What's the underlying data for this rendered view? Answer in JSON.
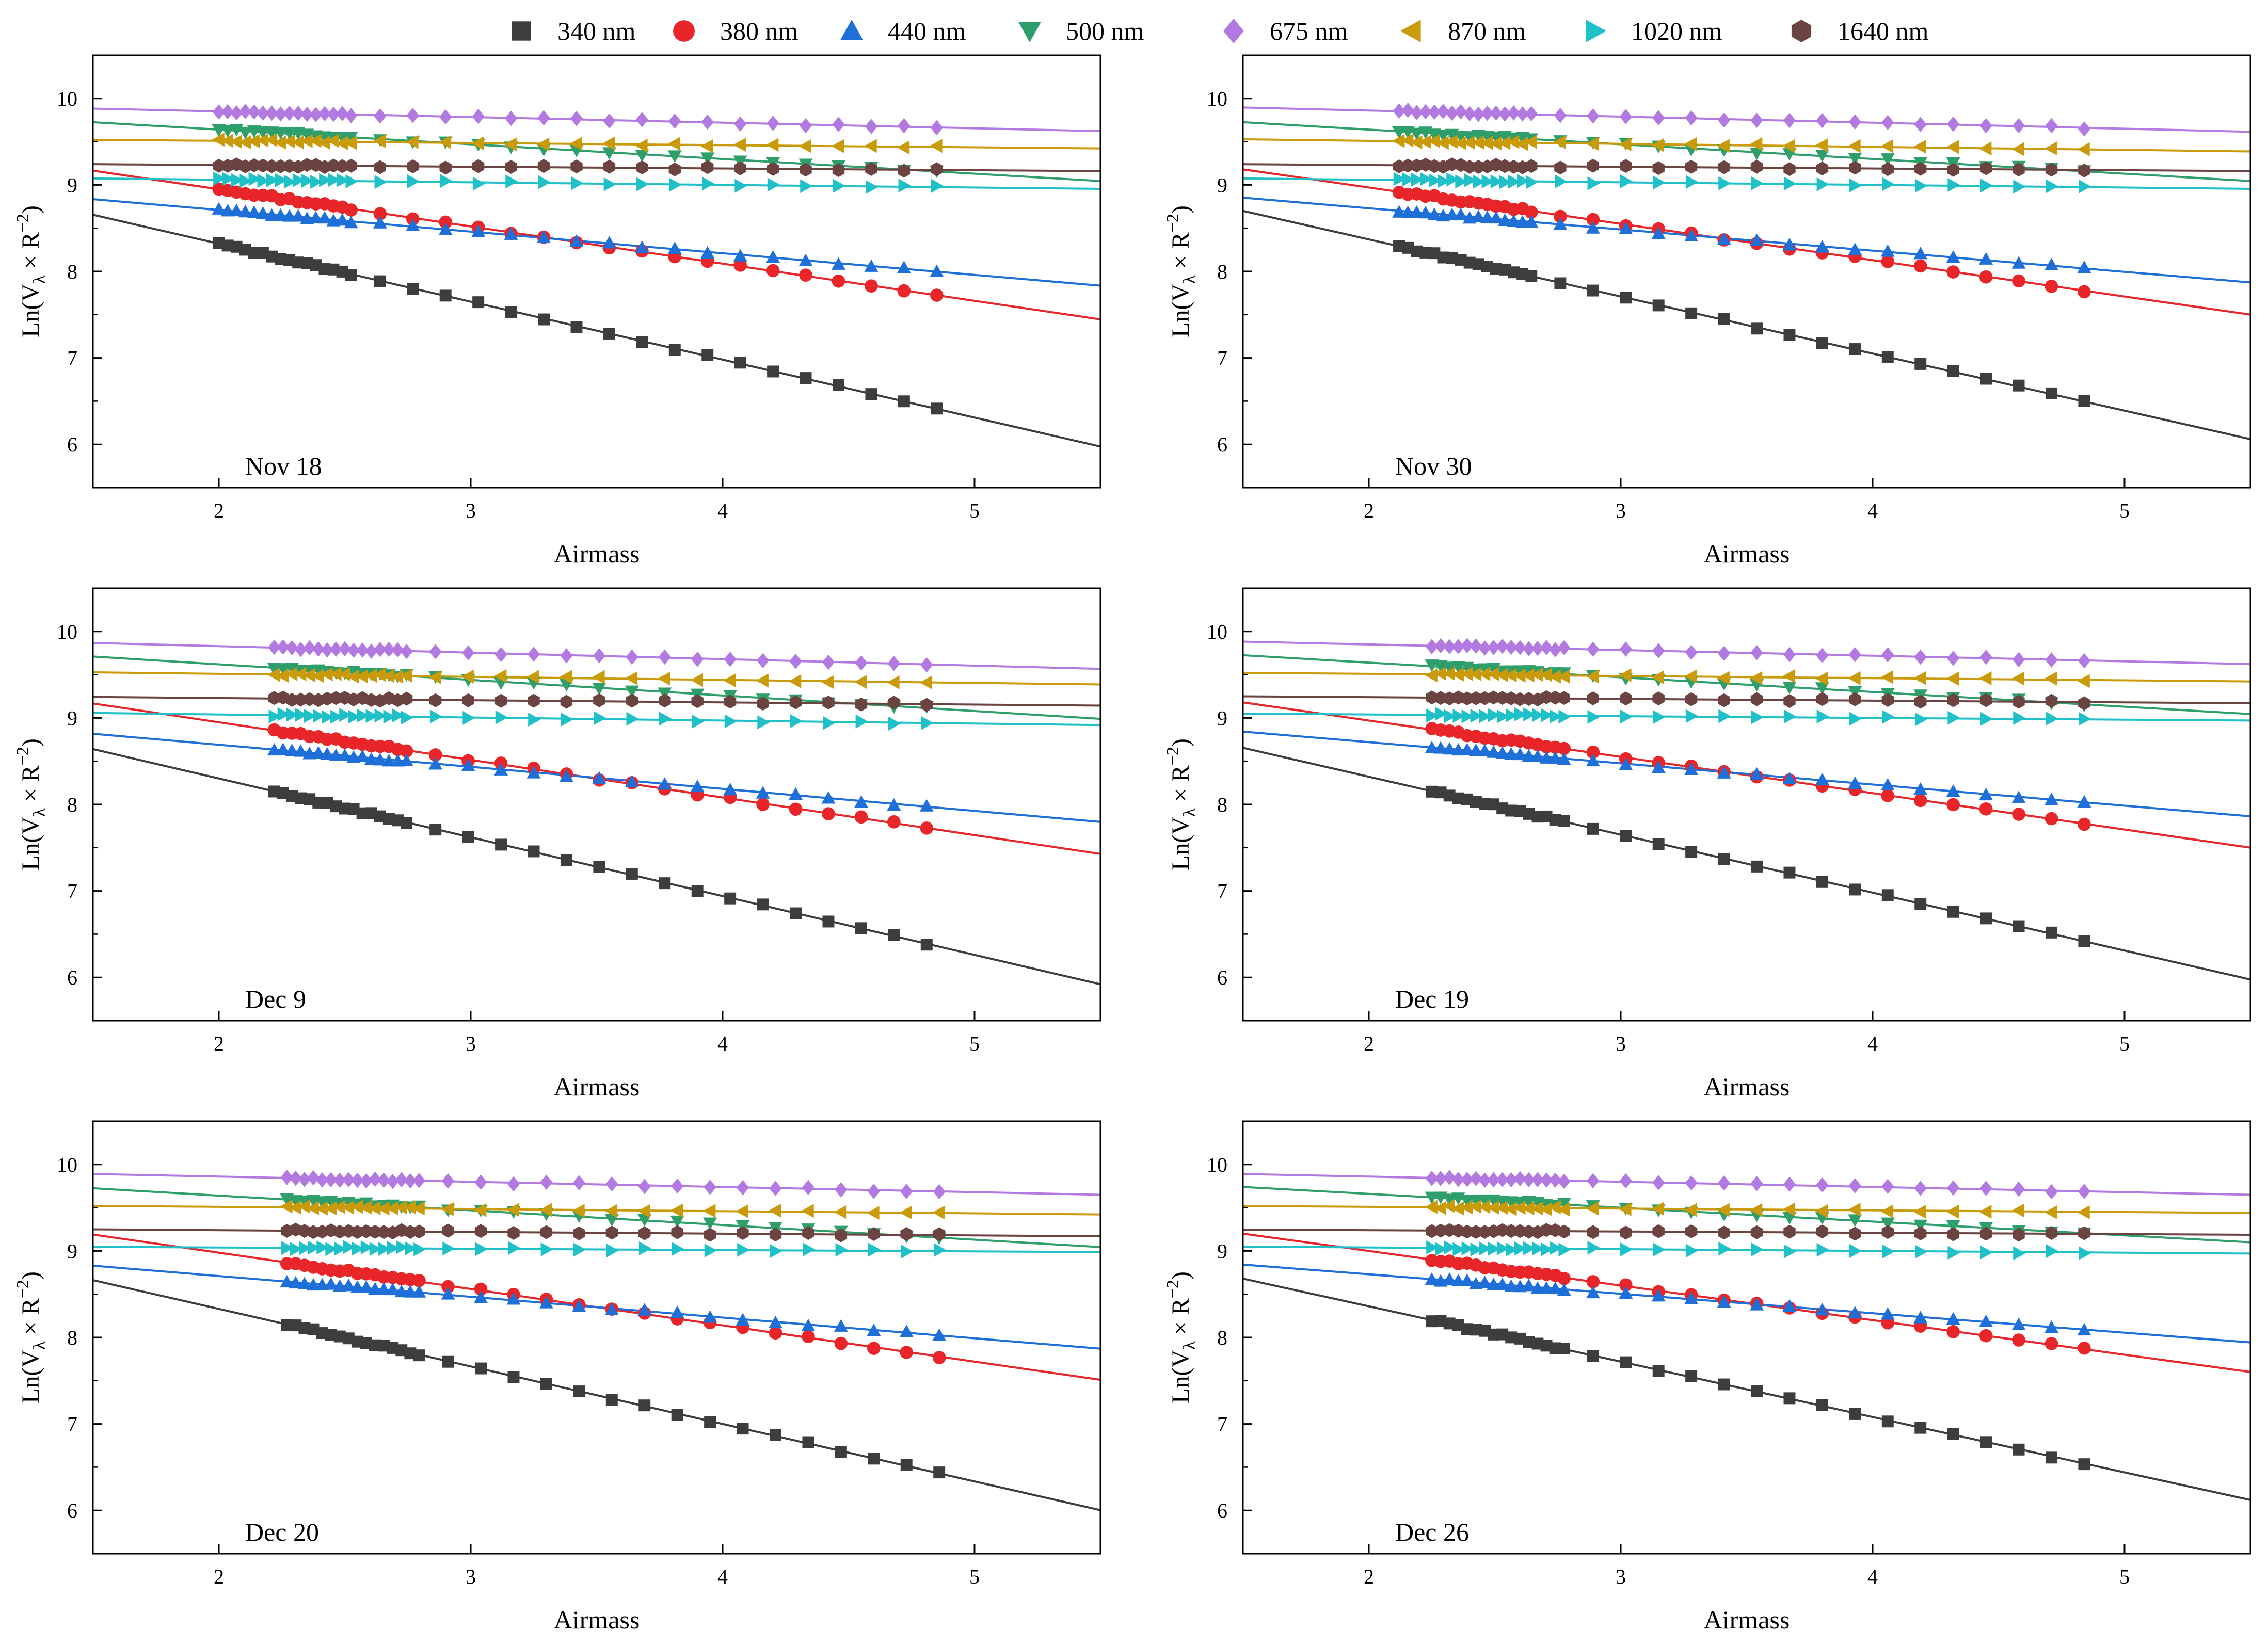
{
  "figure": {
    "legend": [
      {
        "label": "340 nm",
        "color": "#3d3d3d",
        "marker": "square"
      },
      {
        "label": "380 nm",
        "color": "#e8262a",
        "marker": "circle"
      },
      {
        "label": "440 nm",
        "color": "#1f6fd8",
        "marker": "triangle-up"
      },
      {
        "label": "500 nm",
        "color": "#2e9e6a",
        "marker": "triangle-down"
      },
      {
        "label": "675 nm",
        "color": "#b27ae0",
        "marker": "diamond"
      },
      {
        "label": "870 nm",
        "color": "#c99a0a",
        "marker": "triangle-left"
      },
      {
        "label": "1020 nm",
        "color": "#1fc0c8",
        "marker": "triangle-right"
      },
      {
        "label": "1640 nm",
        "color": "#6b4442",
        "marker": "hexagon"
      }
    ]
  },
  "chart_data": [
    {
      "type": "scatter",
      "panel_label": "Nov 18",
      "xlabel": "Airmass",
      "ylabel": "Ln(V",
      "ylabel_sub": "λ",
      "ylabel_rest": " × R",
      "ylabel_sup": "−2",
      "ylabel_close": ")",
      "xlim": [
        1.5,
        5.5
      ],
      "ylim": [
        5.5,
        10.5
      ],
      "xticks": [
        2,
        3,
        4,
        5
      ],
      "yticks": [
        6,
        7,
        8,
        9,
        10
      ],
      "x_range": [
        2.0,
        4.95
      ],
      "series": [
        {
          "name": "340 nm",
          "intercept": 9.66,
          "slope": -0.67
        },
        {
          "name": "380 nm",
          "intercept": 9.81,
          "slope": -0.43
        },
        {
          "name": "440 nm",
          "intercept": 9.21,
          "slope": -0.25
        },
        {
          "name": "500 nm",
          "intercept": 9.98,
          "slope": -0.17
        },
        {
          "name": "675 nm",
          "intercept": 9.98,
          "slope": -0.065
        },
        {
          "name": "870 nm",
          "intercept": 9.56,
          "slope": -0.025
        },
        {
          "name": "1020 nm",
          "intercept": 9.12,
          "slope": -0.03
        },
        {
          "name": "1640 nm",
          "intercept": 9.27,
          "slope": -0.02
        }
      ]
    },
    {
      "type": "scatter",
      "panel_label": "Nov 30",
      "xlabel": "Airmass",
      "ylabel": "Ln(V",
      "ylabel_sub": "λ",
      "ylabel_rest": " × R",
      "ylabel_sup": "−2",
      "ylabel_close": ")",
      "xlim": [
        1.5,
        5.5
      ],
      "ylim": [
        5.5,
        10.5
      ],
      "xticks": [
        2,
        3,
        4,
        5
      ],
      "yticks": [
        6,
        7,
        8,
        9,
        10
      ],
      "x_range": [
        2.12,
        4.9
      ],
      "series": [
        {
          "name": "340 nm",
          "intercept": 9.69,
          "slope": -0.66
        },
        {
          "name": "380 nm",
          "intercept": 9.81,
          "slope": -0.42
        },
        {
          "name": "440 nm",
          "intercept": 9.22,
          "slope": -0.245
        },
        {
          "name": "500 nm",
          "intercept": 9.98,
          "slope": -0.17
        },
        {
          "name": "675 nm",
          "intercept": 10.0,
          "slope": -0.07
        },
        {
          "name": "870 nm",
          "intercept": 9.58,
          "slope": -0.035
        },
        {
          "name": "1020 nm",
          "intercept": 9.12,
          "slope": -0.03
        },
        {
          "name": "1640 nm",
          "intercept": 9.27,
          "slope": -0.02
        }
      ]
    },
    {
      "type": "scatter",
      "panel_label": "Dec 9",
      "xlabel": "Airmass",
      "ylabel": "Ln(V",
      "ylabel_sub": "λ",
      "ylabel_rest": " × R",
      "ylabel_sup": "−2",
      "ylabel_close": ")",
      "xlim": [
        1.5,
        5.5
      ],
      "ylim": [
        5.5,
        10.5
      ],
      "xticks": [
        2,
        3,
        4,
        5
      ],
      "yticks": [
        6,
        7,
        8,
        9,
        10
      ],
      "x_range": [
        2.22,
        4.92
      ],
      "series": [
        {
          "name": "340 nm",
          "intercept": 9.66,
          "slope": -0.68
        },
        {
          "name": "380 nm",
          "intercept": 9.82,
          "slope": -0.435
        },
        {
          "name": "440 nm",
          "intercept": 9.2,
          "slope": -0.255
        },
        {
          "name": "500 nm",
          "intercept": 9.98,
          "slope": -0.18
        },
        {
          "name": "675 nm",
          "intercept": 9.98,
          "slope": -0.075
        },
        {
          "name": "870 nm",
          "intercept": 9.58,
          "slope": -0.035
        },
        {
          "name": "1020 nm",
          "intercept": 9.11,
          "slope": -0.035
        },
        {
          "name": "1640 nm",
          "intercept": 9.28,
          "slope": -0.025
        }
      ]
    },
    {
      "type": "scatter",
      "panel_label": "Dec 19",
      "xlabel": "Airmass",
      "ylabel": "Ln(V",
      "ylabel_sub": "λ",
      "ylabel_rest": " × R",
      "ylabel_sup": "−2",
      "ylabel_close": ")",
      "xlim": [
        1.5,
        5.5
      ],
      "ylim": [
        5.5,
        10.5
      ],
      "xticks": [
        2,
        3,
        4,
        5
      ],
      "yticks": [
        6,
        7,
        8,
        9,
        10
      ],
      "x_range": [
        2.25,
        4.88
      ],
      "series": [
        {
          "name": "340 nm",
          "intercept": 9.66,
          "slope": -0.67
        },
        {
          "name": "380 nm",
          "intercept": 9.81,
          "slope": -0.42
        },
        {
          "name": "440 nm",
          "intercept": 9.21,
          "slope": -0.245
        },
        {
          "name": "500 nm",
          "intercept": 9.98,
          "slope": -0.17
        },
        {
          "name": "675 nm",
          "intercept": 9.98,
          "slope": -0.065
        },
        {
          "name": "870 nm",
          "intercept": 9.56,
          "slope": -0.025
        },
        {
          "name": "1020 nm",
          "intercept": 9.08,
          "slope": -0.02
        },
        {
          "name": "1640 nm",
          "intercept": 9.28,
          "slope": -0.02
        }
      ]
    },
    {
      "type": "scatter",
      "panel_label": "Dec 20",
      "xlabel": "Airmass",
      "ylabel": "Ln(V",
      "ylabel_sub": "λ",
      "ylabel_rest": " × R",
      "ylabel_sup": "−2",
      "ylabel_close": ")",
      "xlim": [
        1.5,
        5.5
      ],
      "ylim": [
        5.5,
        10.5
      ],
      "xticks": [
        2,
        3,
        4,
        5
      ],
      "yticks": [
        6,
        7,
        8,
        9,
        10
      ],
      "x_range": [
        2.27,
        4.92
      ],
      "series": [
        {
          "name": "340 nm",
          "intercept": 9.66,
          "slope": -0.665
        },
        {
          "name": "380 nm",
          "intercept": 9.82,
          "slope": -0.42
        },
        {
          "name": "440 nm",
          "intercept": 9.19,
          "slope": -0.24
        },
        {
          "name": "500 nm",
          "intercept": 9.98,
          "slope": -0.17
        },
        {
          "name": "675 nm",
          "intercept": 9.98,
          "slope": -0.06
        },
        {
          "name": "870 nm",
          "intercept": 9.56,
          "slope": -0.025
        },
        {
          "name": "1020 nm",
          "intercept": 9.07,
          "slope": -0.015
        },
        {
          "name": "1640 nm",
          "intercept": 9.28,
          "slope": -0.02
        }
      ]
    },
    {
      "type": "scatter",
      "panel_label": "Dec 26",
      "xlabel": "Airmass",
      "ylabel": "Ln(V",
      "ylabel_sub": "λ",
      "ylabel_rest": " × R",
      "ylabel_sup": "−2",
      "ylabel_close": ")",
      "xlim": [
        1.5,
        5.5
      ],
      "ylim": [
        5.5,
        10.5
      ],
      "xticks": [
        2,
        3,
        4,
        5
      ],
      "yticks": [
        6,
        7,
        8,
        9,
        10
      ],
      "x_range": [
        2.25,
        4.88
      ],
      "series": [
        {
          "name": "340 nm",
          "intercept": 9.64,
          "slope": -0.64
        },
        {
          "name": "380 nm",
          "intercept": 9.8,
          "slope": -0.4
        },
        {
          "name": "440 nm",
          "intercept": 9.18,
          "slope": -0.225
        },
        {
          "name": "500 nm",
          "intercept": 9.98,
          "slope": -0.16
        },
        {
          "name": "675 nm",
          "intercept": 9.98,
          "slope": -0.06
        },
        {
          "name": "870 nm",
          "intercept": 9.55,
          "slope": -0.02
        },
        {
          "name": "1020 nm",
          "intercept": 9.08,
          "slope": -0.02
        },
        {
          "name": "1640 nm",
          "intercept": 9.27,
          "slope": -0.015
        }
      ]
    }
  ]
}
